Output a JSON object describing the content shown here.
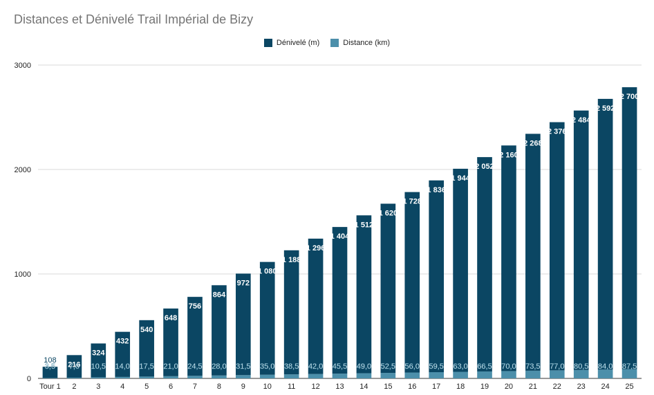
{
  "chart_data": {
    "type": "bar",
    "stacked": true,
    "title": "Distances et Dénivelé Trail Impérial de Bizy",
    "categories": [
      "Tour 1",
      "2",
      "3",
      "4",
      "5",
      "6",
      "7",
      "8",
      "9",
      "10",
      "11",
      "12",
      "13",
      "14",
      "15",
      "16",
      "17",
      "18",
      "19",
      "20",
      "21",
      "22",
      "23",
      "24",
      "25"
    ],
    "series": [
      {
        "name": "Dénivelé (m)",
        "color": "#0b4663",
        "values": [
          108,
          216,
          324,
          432,
          540,
          648,
          756,
          864,
          972,
          1080,
          1188,
          1296,
          1404,
          1512,
          1620,
          1728,
          1836,
          1944,
          2052,
          2160,
          2268,
          2376,
          2484,
          2592,
          2700
        ],
        "labels": [
          "108",
          "216",
          "324",
          "432",
          "540",
          "648",
          "756",
          "864",
          "972",
          "1 080",
          "1 188",
          "1 296",
          "1 404",
          "1 512",
          "1 620",
          "1 728",
          "1 836",
          "1 944",
          "2 052",
          "2 160",
          "2 268",
          "2 376",
          "2 484",
          "2 592",
          "2 700"
        ]
      },
      {
        "name": "Distance (km)",
        "color": "#4c8faa",
        "values": [
          3.5,
          7.0,
          10.5,
          14.0,
          17.5,
          21.0,
          24.5,
          28.0,
          31.5,
          35.0,
          38.5,
          42.0,
          45.5,
          49.0,
          52.5,
          56.0,
          59.5,
          63.0,
          66.5,
          70.0,
          73.5,
          77.0,
          80.5,
          84.0,
          87.5
        ],
        "labels": [
          "3,5",
          "7,0",
          "10,5",
          "14,0",
          "17,5",
          "21,0",
          "24,5",
          "28,0",
          "31,5",
          "35,0",
          "38,5",
          "42,0",
          "45,5",
          "49,0",
          "52,5",
          "56,0",
          "59,5",
          "63,0",
          "66,5",
          "70,0",
          "73,5",
          "77,0",
          "80,5",
          "84,0",
          "87,5"
        ]
      }
    ],
    "y_ticks": [
      "0",
      "1000",
      "2000",
      "3000"
    ],
    "ylim": [
      0,
      3000
    ],
    "grid": true,
    "legend_position": "top"
  }
}
